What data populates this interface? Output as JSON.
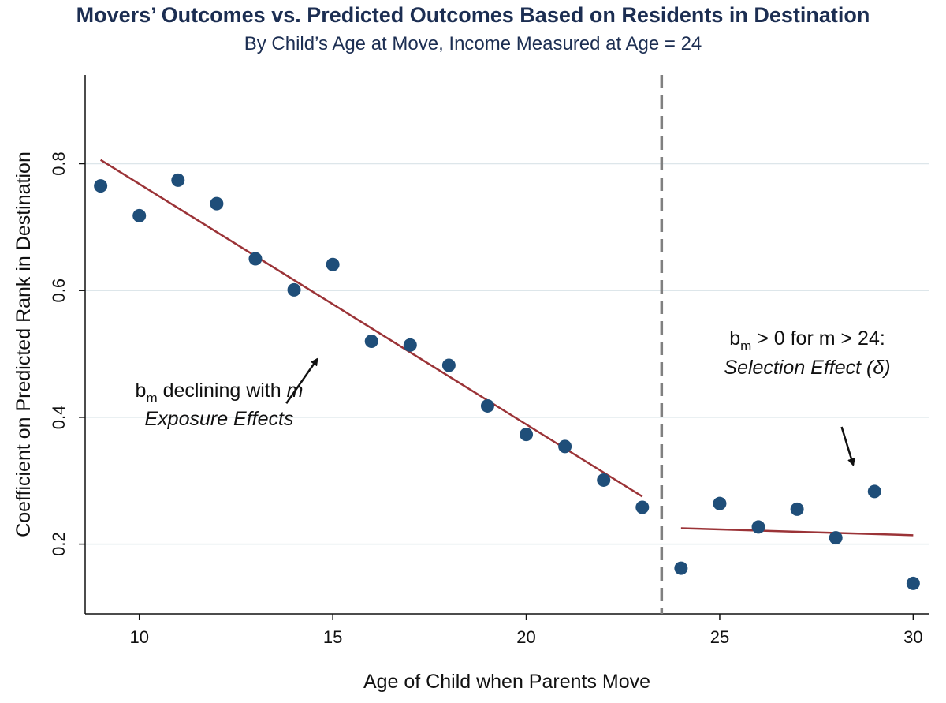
{
  "chart_data": {
    "type": "scatter",
    "title": "Movers’ Outcomes vs. Predicted Outcomes Based on Residents in Destination",
    "subtitle": "By Child’s Age at Move, Income Measured at Age = 24",
    "xlabel": "Age of Child when Parents Move",
    "ylabel": "Coefficient on Predicted Rank in Destination",
    "xlim": [
      8.6,
      30.4
    ],
    "ylim": [
      0.09,
      0.94
    ],
    "xticks": [
      10,
      15,
      20,
      25,
      30
    ],
    "yticks": [
      0.2,
      0.4,
      0.6,
      0.8
    ],
    "grid": true,
    "legend": "none",
    "colors": {
      "points": "#1f4e79",
      "fit": "#9b3337",
      "title": "#1c2e52",
      "grid": "#dde6ea",
      "cutoff": "#808080"
    },
    "series": [
      {
        "x": [
          9,
          10,
          11,
          12,
          13,
          14,
          15,
          16,
          17,
          18,
          19,
          20,
          21,
          22,
          23,
          24,
          25,
          26,
          27,
          28,
          29,
          30
        ],
        "values": [
          0.765,
          0.718,
          0.774,
          0.737,
          0.65,
          0.601,
          0.641,
          0.52,
          0.514,
          0.482,
          0.418,
          0.373,
          0.354,
          0.301,
          0.258,
          0.162,
          0.264,
          0.227,
          0.255,
          0.21,
          0.283,
          0.138
        ]
      }
    ],
    "fit_lines": [
      {
        "x": [
          9,
          23
        ],
        "y": [
          0.806,
          0.275
        ]
      },
      {
        "x": [
          24,
          30
        ],
        "y": [
          0.225,
          0.214
        ]
      }
    ],
    "reference_line": {
      "x": 23.5,
      "style": "dashed"
    },
    "annotations": [
      {
        "line1": {
          "b": "b",
          "sub": "m",
          "rest": " declining with ",
          "ital": "m"
        },
        "line2": "Exposure Effects",
        "arrow": {
          "from": [
            13.8,
            0.422
          ],
          "to": [
            14.6,
            0.492
          ]
        }
      },
      {
        "line1": {
          "b": "b",
          "sub": "m",
          "rest": " > 0 for m > 24:"
        },
        "line2": "Selection Effect (δ)",
        "arrow": {
          "from": [
            28.15,
            0.385
          ],
          "to": [
            28.45,
            0.325
          ]
        }
      }
    ]
  }
}
